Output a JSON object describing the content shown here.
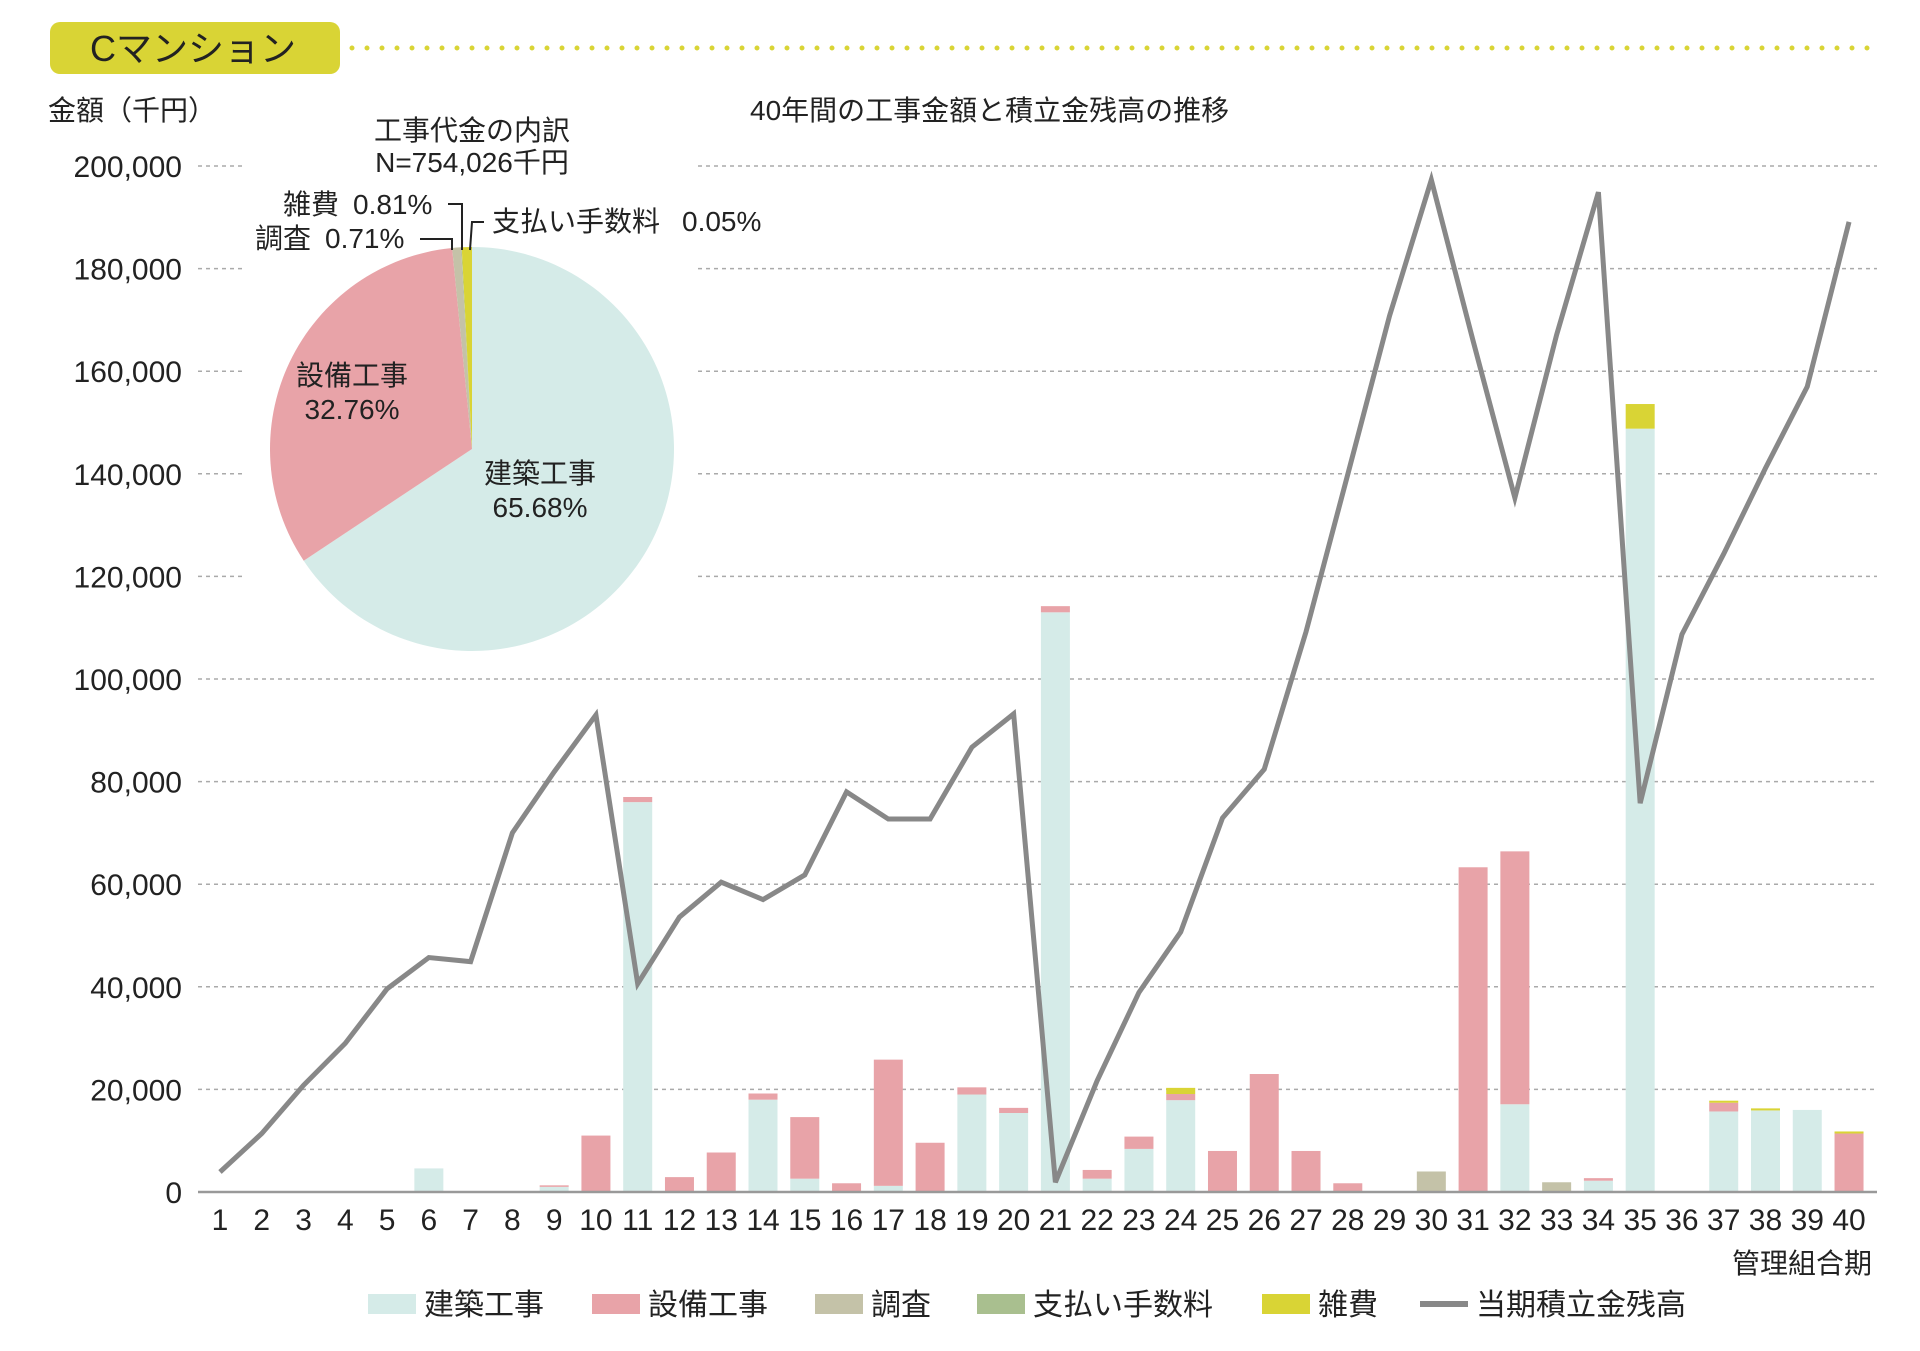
{
  "header": {
    "tag": "Cマンション"
  },
  "chart_data": {
    "type": "bar",
    "stacked": true,
    "title": "40年間の工事金額と積立金残高の推移",
    "ylabel": "金額（千円）",
    "xlabel": "管理組合期",
    "ylim": [
      0,
      200000
    ],
    "yticks": [
      0,
      20000,
      40000,
      60000,
      80000,
      100000,
      120000,
      140000,
      160000,
      180000,
      200000
    ],
    "ytick_labels": [
      "0",
      "20,000",
      "40,000",
      "60,000",
      "80,000",
      "100,000",
      "120,000",
      "140,000",
      "160,000",
      "180,000",
      "200,000"
    ],
    "grid": true,
    "legend_position": "bottom",
    "categories": [
      "1",
      "2",
      "3",
      "4",
      "5",
      "6",
      "7",
      "8",
      "9",
      "10",
      "11",
      "12",
      "13",
      "14",
      "15",
      "16",
      "17",
      "18",
      "19",
      "20",
      "21",
      "22",
      "23",
      "24",
      "25",
      "26",
      "27",
      "28",
      "29",
      "30",
      "31",
      "32",
      "33",
      "34",
      "35",
      "36",
      "37",
      "38",
      "39",
      "40"
    ],
    "series": [
      {
        "name": "建築工事",
        "kind": "bar",
        "color": "#d5ebe8",
        "values": [
          0,
          0,
          0,
          0,
          0,
          4600,
          0,
          0,
          1000,
          0,
          76000,
          0,
          0,
          18000,
          2600,
          0,
          1200,
          0,
          19000,
          15400,
          113000,
          2600,
          8400,
          17900,
          0,
          0,
          0,
          0,
          0,
          0,
          0,
          17100,
          0,
          2200,
          148800,
          0,
          15700,
          15900,
          16000,
          0
        ]
      },
      {
        "name": "設備工事",
        "kind": "bar",
        "color": "#e8a3a8",
        "values": [
          0,
          0,
          0,
          0,
          0,
          0,
          0,
          0,
          300,
          11000,
          1000,
          2900,
          7700,
          1200,
          12000,
          1700,
          24600,
          9600,
          1400,
          1000,
          1200,
          1700,
          2400,
          1200,
          8000,
          23000,
          8000,
          1700,
          0,
          0,
          63300,
          49300,
          0,
          500,
          0,
          0,
          1700,
          0,
          0,
          11400
        ]
      },
      {
        "name": "調査",
        "kind": "bar",
        "color": "#c4c2a8",
        "values": [
          0,
          0,
          0,
          0,
          0,
          0,
          0,
          0,
          0,
          0,
          0,
          0,
          0,
          0,
          0,
          0,
          0,
          0,
          0,
          0,
          0,
          0,
          0,
          0,
          0,
          0,
          0,
          0,
          0,
          4000,
          0,
          0,
          1900,
          0,
          0,
          0,
          0,
          0,
          0,
          0
        ]
      },
      {
        "name": "支払い手数料",
        "kind": "bar",
        "color": "#a9bf8f",
        "values": [
          0,
          0,
          0,
          0,
          0,
          0,
          0,
          0,
          0,
          0,
          0,
          0,
          0,
          0,
          0,
          0,
          0,
          0,
          0,
          0,
          0,
          0,
          0,
          0,
          0,
          0,
          0,
          0,
          0,
          0,
          0,
          0,
          0,
          0,
          0,
          0,
          0,
          0,
          0,
          0
        ]
      },
      {
        "name": "雑費",
        "kind": "bar",
        "color": "#d9d435",
        "values": [
          0,
          0,
          0,
          0,
          0,
          0,
          0,
          0,
          0,
          0,
          0,
          0,
          0,
          0,
          0,
          0,
          0,
          0,
          0,
          0,
          0,
          0,
          0,
          1200,
          0,
          0,
          0,
          0,
          0,
          0,
          0,
          0,
          0,
          0,
          4800,
          0,
          400,
          400,
          0,
          400
        ]
      },
      {
        "name": "当期積立金残高",
        "kind": "line",
        "color": "#888888",
        "values": [
          3900,
          11400,
          20800,
          29000,
          39600,
          45700,
          44900,
          70000,
          81900,
          93000,
          40600,
          53600,
          60400,
          57000,
          61800,
          78000,
          72700,
          72700,
          86700,
          93200,
          1900,
          21700,
          38900,
          50700,
          72900,
          82400,
          109200,
          139900,
          170800,
          197300,
          165900,
          135300,
          167100,
          194900,
          75800,
          108700,
          124400,
          141100,
          157000,
          189100
        ]
      }
    ],
    "pie": {
      "type": "pie",
      "title": "工事代金の内訳",
      "total_label": "N=754,026千円",
      "slices": [
        {
          "name": "建築工事",
          "value": 65.68,
          "label": "65.68%",
          "color": "#d5ebe8"
        },
        {
          "name": "設備工事",
          "value": 32.76,
          "label": "32.76%",
          "color": "#e8a3a8"
        },
        {
          "name": "調査",
          "value": 0.71,
          "label": "0.71%",
          "color": "#c4c2a8"
        },
        {
          "name": "支払い手数料",
          "value": 0.05,
          "label": "0.05%",
          "color": "#a9bf8f"
        },
        {
          "name": "雑費",
          "value": 0.81,
          "label": "0.81%",
          "color": "#d9d435"
        }
      ]
    }
  },
  "colors": {
    "tag": "#d9d435",
    "grid": "#aaaaaa",
    "axis": "#999999"
  }
}
